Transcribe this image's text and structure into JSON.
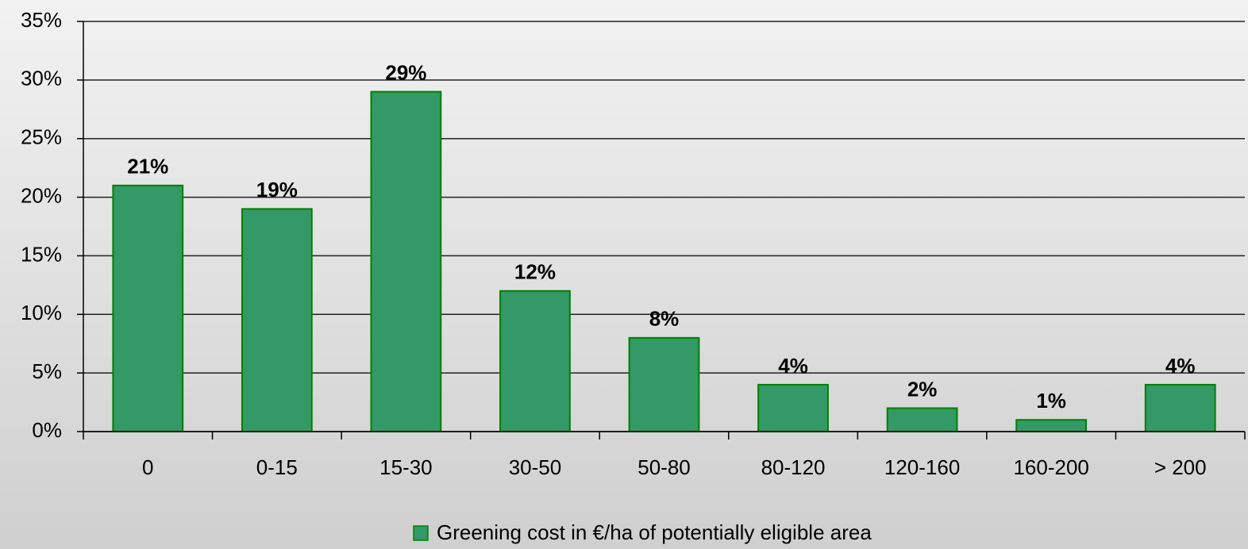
{
  "chart_data": {
    "type": "bar",
    "categories": [
      "0",
      "0-15",
      "15-30",
      "30-50",
      "50-80",
      "80-120",
      "120-160",
      "160-200",
      "> 200"
    ],
    "series": [
      {
        "name": "Greening cost in €/ha of potentially eligible area",
        "color": "#339966",
        "values": [
          21,
          19,
          29,
          12,
          8,
          4,
          2,
          1,
          4
        ],
        "value_labels": [
          "21%",
          "19%",
          "29%",
          "12%",
          "8%",
          "4%",
          "2%",
          "1%",
          "4%"
        ]
      }
    ],
    "ylim": [
      0,
      35
    ],
    "yticks": [
      {
        "value": 0,
        "label": "0%"
      },
      {
        "value": 5,
        "label": "5%"
      },
      {
        "value": 10,
        "label": "10%"
      },
      {
        "value": 15,
        "label": "15%"
      },
      {
        "value": 20,
        "label": "20%"
      },
      {
        "value": 25,
        "label": "25%"
      },
      {
        "value": 30,
        "label": "30%"
      },
      {
        "value": 35,
        "label": "35%"
      }
    ],
    "grid": true,
    "legend": "bottom"
  }
}
